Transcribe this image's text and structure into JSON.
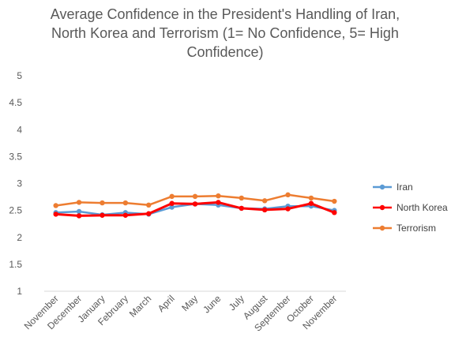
{
  "chart_data": {
    "type": "line",
    "title": "Average Confidence in the President's Handling of Iran, North Korea and Terrorism (1= No Confidence, 5= High Confidence)",
    "categories": [
      "November",
      "December",
      "January",
      "February",
      "March",
      "April",
      "May",
      "June",
      "July",
      "August",
      "September",
      "October",
      "November"
    ],
    "ylim": [
      1,
      5
    ],
    "yticks": [
      "1",
      "1.5",
      "2",
      "2.5",
      "3",
      "3.5",
      "4",
      "4.5",
      "5"
    ],
    "grid": false,
    "legend_position": "right",
    "series": [
      {
        "name": "Iran",
        "color": "#5B9BD5",
        "values": [
          2.46,
          2.48,
          2.42,
          2.46,
          2.43,
          2.56,
          2.62,
          2.6,
          2.54,
          2.53,
          2.58,
          2.58,
          2.5
        ]
      },
      {
        "name": "North Korea",
        "color": "#FF0000",
        "values": [
          2.43,
          2.4,
          2.41,
          2.41,
          2.44,
          2.63,
          2.62,
          2.65,
          2.54,
          2.51,
          2.53,
          2.63,
          2.46
        ]
      },
      {
        "name": "Terrorism",
        "color": "#ED7D31",
        "values": [
          2.59,
          2.65,
          2.64,
          2.64,
          2.6,
          2.76,
          2.76,
          2.77,
          2.73,
          2.68,
          2.79,
          2.73,
          2.67
        ]
      }
    ]
  }
}
